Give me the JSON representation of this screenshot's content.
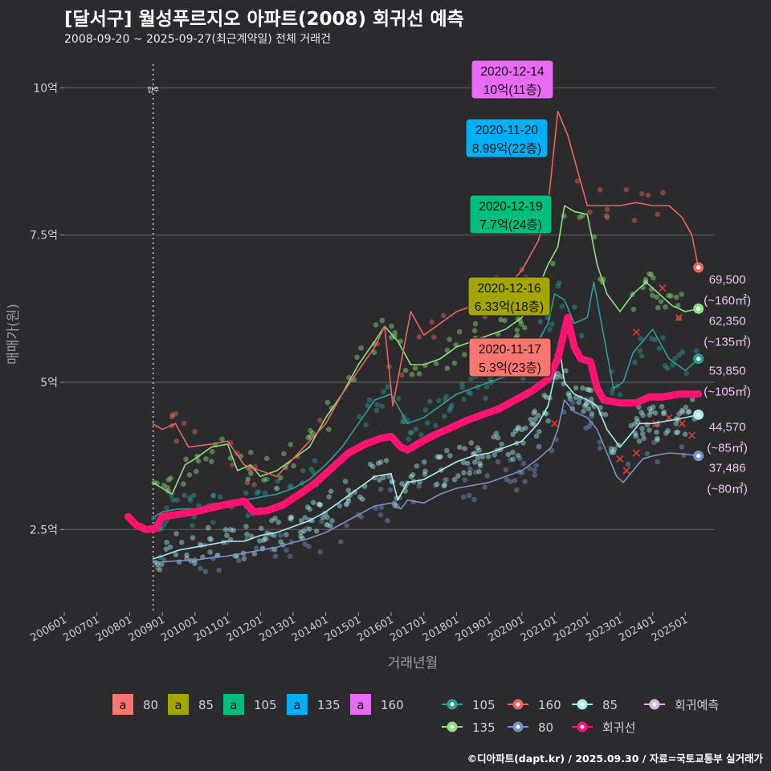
{
  "header": {
    "title": "[달서구] 월성푸르지오 아파트(2008) 회귀선 예측",
    "subtitle": "2008-09-20 ~ 2025-09-27(최근계약일) 전체 거래건"
  },
  "footer": {
    "credit": "©디아파트(dapt.kr) / 2025.09.30 / 자료=국토교통부 실거래가"
  },
  "chart_data": {
    "type": "line",
    "xlabel": "거래년월",
    "ylabel": "매매가(원)",
    "x_range": [
      2006.0,
      2025.9
    ],
    "ylim": [
      1.1,
      10.7
    ],
    "y_ticks": [
      {
        "value": 2.5,
        "label": "2.5억"
      },
      {
        "value": 5,
        "label": "5억"
      },
      {
        "value": 7.5,
        "label": "7.5억"
      },
      {
        "value": 10,
        "label": "10억"
      }
    ],
    "x_ticks": [
      "200601",
      "200701",
      "200801",
      "200901",
      "201001",
      "201101",
      "201201",
      "201301",
      "201401",
      "201501",
      "201601",
      "201701",
      "201801",
      "201901",
      "202001",
      "202101",
      "202201",
      "202301",
      "202401",
      "202501"
    ],
    "event_marker": {
      "x": 2008.72,
      "label": "입주"
    },
    "colors": {
      "s80": "#7b8fc6",
      "s85": "#a8ecec",
      "s105": "#2f9a9a",
      "s135": "#8ee07e",
      "s160": "#e8665e",
      "regression": "#ff1270",
      "forecast": "#e0b4e6",
      "box80": "#f8766d",
      "box85": "#a3a500",
      "box105": "#00bf7d",
      "box135": "#00b0f6",
      "box160": "#e76bf3"
    },
    "series": [
      {
        "name": "80",
        "color": "#7b8fc6",
        "points": [
          [
            2008.7,
            1.95
          ],
          [
            2009.0,
            1.95
          ],
          [
            2009.5,
            1.97
          ],
          [
            2010.0,
            1.98
          ],
          [
            2010.5,
            2.02
          ],
          [
            2011.0,
            2.05
          ],
          [
            2011.5,
            2.1
          ],
          [
            2012.0,
            2.15
          ],
          [
            2012.5,
            2.2
          ],
          [
            2013.0,
            2.28
          ],
          [
            2013.5,
            2.35
          ],
          [
            2014.0,
            2.45
          ],
          [
            2014.5,
            2.6
          ],
          [
            2015.0,
            2.75
          ],
          [
            2015.5,
            2.9
          ],
          [
            2016.0,
            2.95
          ],
          [
            2016.3,
            2.85
          ],
          [
            2016.5,
            3.0
          ],
          [
            2017.0,
            2.95
          ],
          [
            2017.5,
            3.1
          ],
          [
            2018.0,
            3.2
          ],
          [
            2018.5,
            3.25
          ],
          [
            2019.0,
            3.3
          ],
          [
            2019.5,
            3.4
          ],
          [
            2020.0,
            3.5
          ],
          [
            2020.5,
            3.7
          ],
          [
            2020.9,
            3.9
          ],
          [
            2021.1,
            4.2
          ],
          [
            2021.3,
            4.7
          ],
          [
            2021.6,
            4.5
          ],
          [
            2022.0,
            4.4
          ],
          [
            2022.3,
            4.2
          ],
          [
            2022.6,
            3.8
          ],
          [
            2022.9,
            3.4
          ],
          [
            2023.1,
            3.3
          ],
          [
            2023.4,
            3.5
          ],
          [
            2023.7,
            3.7
          ],
          [
            2024.0,
            3.75
          ],
          [
            2024.5,
            3.8
          ],
          [
            2025.0,
            3.78
          ],
          [
            2025.4,
            3.75
          ]
        ],
        "end_label": "37,486",
        "end_sub": "(~80㎡)"
      },
      {
        "name": "85",
        "color": "#a8ecec",
        "points": [
          [
            2008.7,
            2.0
          ],
          [
            2009.0,
            2.05
          ],
          [
            2009.5,
            2.15
          ],
          [
            2010.0,
            2.2
          ],
          [
            2010.5,
            2.25
          ],
          [
            2011.0,
            2.3
          ],
          [
            2011.5,
            2.3
          ],
          [
            2012.0,
            2.4
          ],
          [
            2012.5,
            2.45
          ],
          [
            2013.0,
            2.55
          ],
          [
            2013.5,
            2.65
          ],
          [
            2014.0,
            2.8
          ],
          [
            2014.5,
            3.0
          ],
          [
            2015.0,
            3.2
          ],
          [
            2015.5,
            3.4
          ],
          [
            2016.0,
            3.45
          ],
          [
            2016.2,
            3.0
          ],
          [
            2016.5,
            3.3
          ],
          [
            2017.0,
            3.35
          ],
          [
            2017.5,
            3.5
          ],
          [
            2018.0,
            3.65
          ],
          [
            2018.5,
            3.75
          ],
          [
            2019.0,
            3.8
          ],
          [
            2019.5,
            3.9
          ],
          [
            2020.0,
            4.0
          ],
          [
            2020.5,
            4.3
          ],
          [
            2020.8,
            4.6
          ],
          [
            2021.0,
            5.1
          ],
          [
            2021.15,
            5.6
          ],
          [
            2021.3,
            5.0
          ],
          [
            2021.6,
            4.8
          ],
          [
            2022.0,
            4.7
          ],
          [
            2022.3,
            4.6
          ],
          [
            2022.6,
            4.2
          ],
          [
            2023.0,
            3.9
          ],
          [
            2023.3,
            4.1
          ],
          [
            2023.6,
            4.3
          ],
          [
            2024.0,
            4.3
          ],
          [
            2024.5,
            4.35
          ],
          [
            2025.0,
            4.4
          ],
          [
            2025.4,
            4.45
          ]
        ],
        "end_label": "44,570",
        "end_sub": "(~85㎡)"
      },
      {
        "name": "105",
        "color": "#2f9a9a",
        "points": [
          [
            2008.7,
            2.7
          ],
          [
            2009.0,
            2.8
          ],
          [
            2009.5,
            2.85
          ],
          [
            2010.0,
            2.85
          ],
          [
            2010.5,
            2.9
          ],
          [
            2011.0,
            2.9
          ],
          [
            2011.5,
            3.0
          ],
          [
            2012.0,
            3.05
          ],
          [
            2012.5,
            3.1
          ],
          [
            2013.0,
            3.2
          ],
          [
            2013.5,
            3.35
          ],
          [
            2014.0,
            3.6
          ],
          [
            2014.5,
            3.9
          ],
          [
            2015.0,
            4.3
          ],
          [
            2015.5,
            4.7
          ],
          [
            2016.0,
            4.8
          ],
          [
            2016.5,
            4.3
          ],
          [
            2017.0,
            4.4
          ],
          [
            2017.5,
            4.6
          ],
          [
            2018.0,
            4.8
          ],
          [
            2018.5,
            4.9
          ],
          [
            2019.0,
            5.0
          ],
          [
            2019.5,
            5.1
          ],
          [
            2020.0,
            5.3
          ],
          [
            2020.5,
            5.7
          ],
          [
            2020.8,
            6.0
          ],
          [
            2021.0,
            6.5
          ],
          [
            2021.3,
            6.4
          ],
          [
            2021.6,
            6.0
          ],
          [
            2022.0,
            6.1
          ],
          [
            2022.2,
            6.7
          ],
          [
            2022.5,
            5.8
          ],
          [
            2022.8,
            4.9
          ],
          [
            2023.1,
            5.0
          ],
          [
            2023.4,
            5.5
          ],
          [
            2023.7,
            5.7
          ],
          [
            2024.0,
            5.9
          ],
          [
            2024.5,
            5.4
          ],
          [
            2025.0,
            5.2
          ],
          [
            2025.4,
            5.4
          ]
        ],
        "end_label": "53,850",
        "end_sub": "(~105㎡)"
      },
      {
        "name": "135",
        "color": "#8ee07e",
        "points": [
          [
            2008.7,
            3.3
          ],
          [
            2009.0,
            3.2
          ],
          [
            2009.3,
            3.1
          ],
          [
            2009.7,
            3.6
          ],
          [
            2010.0,
            3.7
          ],
          [
            2010.5,
            3.9
          ],
          [
            2011.0,
            3.95
          ],
          [
            2011.3,
            3.5
          ],
          [
            2011.7,
            3.6
          ],
          [
            2012.0,
            3.4
          ],
          [
            2012.5,
            3.5
          ],
          [
            2013.0,
            3.7
          ],
          [
            2013.5,
            3.9
          ],
          [
            2014.0,
            4.4
          ],
          [
            2014.5,
            4.8
          ],
          [
            2015.0,
            5.3
          ],
          [
            2015.5,
            5.7
          ],
          [
            2015.8,
            5.95
          ],
          [
            2016.2,
            5.7
          ],
          [
            2016.6,
            5.3
          ],
          [
            2017.0,
            5.3
          ],
          [
            2017.5,
            5.4
          ],
          [
            2018.0,
            5.6
          ],
          [
            2018.5,
            5.7
          ],
          [
            2019.0,
            5.8
          ],
          [
            2019.5,
            5.9
          ],
          [
            2020.0,
            6.1
          ],
          [
            2020.5,
            6.6
          ],
          [
            2020.8,
            7.0
          ],
          [
            2021.1,
            7.3
          ],
          [
            2021.3,
            8.0
          ],
          [
            2021.6,
            7.9
          ],
          [
            2022.0,
            7.85
          ],
          [
            2022.3,
            7.0
          ],
          [
            2022.6,
            6.5
          ],
          [
            2023.0,
            6.2
          ],
          [
            2023.4,
            6.5
          ],
          [
            2023.8,
            6.7
          ],
          [
            2024.2,
            6.5
          ],
          [
            2024.6,
            6.3
          ],
          [
            2025.0,
            6.2
          ],
          [
            2025.4,
            6.25
          ]
        ],
        "end_label": "62,350",
        "end_sub": "(~135㎡)"
      },
      {
        "name": "160",
        "color": "#e8665e",
        "points": [
          [
            2008.7,
            4.3
          ],
          [
            2009.0,
            4.2
          ],
          [
            2009.4,
            4.3
          ],
          [
            2009.8,
            3.9
          ],
          [
            2010.5,
            3.95
          ],
          [
            2011.0,
            4.0
          ],
          [
            2011.5,
            3.6
          ],
          [
            2012.0,
            3.5
          ],
          [
            2012.5,
            3.4
          ],
          [
            2013.0,
            3.7
          ],
          [
            2013.5,
            4.0
          ],
          [
            2014.0,
            4.3
          ],
          [
            2014.5,
            4.8
          ],
          [
            2015.0,
            5.2
          ],
          [
            2015.5,
            5.6
          ],
          [
            2015.8,
            5.95
          ],
          [
            2016.05,
            4.6
          ],
          [
            2016.6,
            6.2
          ],
          [
            2017.0,
            5.8
          ],
          [
            2017.5,
            6.0
          ],
          [
            2018.0,
            6.2
          ],
          [
            2018.5,
            6.3
          ],
          [
            2019.0,
            6.4
          ],
          [
            2019.5,
            6.6
          ],
          [
            2020.0,
            6.9
          ],
          [
            2020.5,
            7.4
          ],
          [
            2020.8,
            8.0
          ],
          [
            2021.1,
            9.6
          ],
          [
            2021.4,
            9.2
          ],
          [
            2021.7,
            8.6
          ],
          [
            2022.0,
            8.0
          ],
          [
            2022.5,
            8.0
          ],
          [
            2023.0,
            8.0
          ],
          [
            2023.5,
            8.05
          ],
          [
            2024.0,
            8.0
          ],
          [
            2024.5,
            8.0
          ],
          [
            2024.9,
            7.8
          ],
          [
            2025.2,
            7.5
          ],
          [
            2025.4,
            6.95
          ]
        ],
        "end_label": "69,500",
        "end_sub": "(~160㎡)"
      }
    ],
    "regression": {
      "name": "회귀선",
      "color": "#ff1270",
      "points": [
        [
          2007.95,
          2.72
        ],
        [
          2008.2,
          2.58
        ],
        [
          2008.5,
          2.5
        ],
        [
          2008.8,
          2.52
        ],
        [
          2009.0,
          2.72
        ],
        [
          2009.5,
          2.76
        ],
        [
          2010.0,
          2.8
        ],
        [
          2010.5,
          2.87
        ],
        [
          2011.0,
          2.93
        ],
        [
          2011.5,
          2.98
        ],
        [
          2011.8,
          2.8
        ],
        [
          2012.2,
          2.82
        ],
        [
          2012.7,
          2.92
        ],
        [
          2013.2,
          3.1
        ],
        [
          2013.7,
          3.3
        ],
        [
          2014.2,
          3.55
        ],
        [
          2014.7,
          3.8
        ],
        [
          2015.2,
          3.95
        ],
        [
          2015.7,
          4.05
        ],
        [
          2016.0,
          4.08
        ],
        [
          2016.3,
          3.9
        ],
        [
          2016.5,
          3.85
        ],
        [
          2016.8,
          3.95
        ],
        [
          2017.3,
          4.1
        ],
        [
          2017.8,
          4.22
        ],
        [
          2018.3,
          4.35
        ],
        [
          2018.8,
          4.45
        ],
        [
          2019.3,
          4.55
        ],
        [
          2019.8,
          4.7
        ],
        [
          2020.3,
          4.85
        ],
        [
          2020.8,
          5.05
        ],
        [
          2021.1,
          5.4
        ],
        [
          2021.4,
          6.1
        ],
        [
          2021.6,
          5.6
        ],
        [
          2021.8,
          5.4
        ],
        [
          2022.1,
          5.35
        ],
        [
          2022.3,
          4.9
        ],
        [
          2022.5,
          4.7
        ],
        [
          2023.0,
          4.65
        ],
        [
          2023.5,
          4.65
        ],
        [
          2023.9,
          4.75
        ],
        [
          2024.3,
          4.75
        ],
        [
          2024.8,
          4.8
        ],
        [
          2025.4,
          4.8
        ]
      ]
    },
    "forecast": {
      "name": "회귀예측"
    },
    "callouts": [
      {
        "date": "2020-12-14",
        "price": "10억(11층)",
        "box_color": "#e76bf3"
      },
      {
        "date": "2020-11-20",
        "price": "8.99억(22층)",
        "box_color": "#00b0f6"
      },
      {
        "date": "2020-12-19",
        "price": "7.7억(24층)",
        "box_color": "#00bf7d"
      },
      {
        "date": "2020-12-16",
        "price": "6.33억(18층)",
        "box_color": "#a3a500"
      },
      {
        "date": "2020-11-17",
        "price": "5.3억(23층)",
        "box_color": "#f8766d"
      }
    ],
    "legend_boxes": [
      {
        "glyph": "a",
        "label": "80",
        "color": "#f8766d"
      },
      {
        "glyph": "a",
        "label": "85",
        "color": "#a3a500"
      },
      {
        "glyph": "a",
        "label": "105",
        "color": "#00bf7d"
      },
      {
        "glyph": "a",
        "label": "135",
        "color": "#00b0f6"
      },
      {
        "glyph": "a",
        "label": "160",
        "color": "#e76bf3"
      }
    ],
    "legend_lines": [
      {
        "label": "105",
        "color": "#2f9a9a"
      },
      {
        "label": "160",
        "color": "#e8665e"
      },
      {
        "label": "85",
        "color": "#a8ecec"
      },
      {
        "label": "회귀예측",
        "color": "#e0b4e6"
      },
      {
        "label": "135",
        "color": "#8ee07e"
      },
      {
        "label": "80",
        "color": "#7b8fc6"
      },
      {
        "label": "회귀선",
        "color": "#ff1270"
      }
    ]
  }
}
